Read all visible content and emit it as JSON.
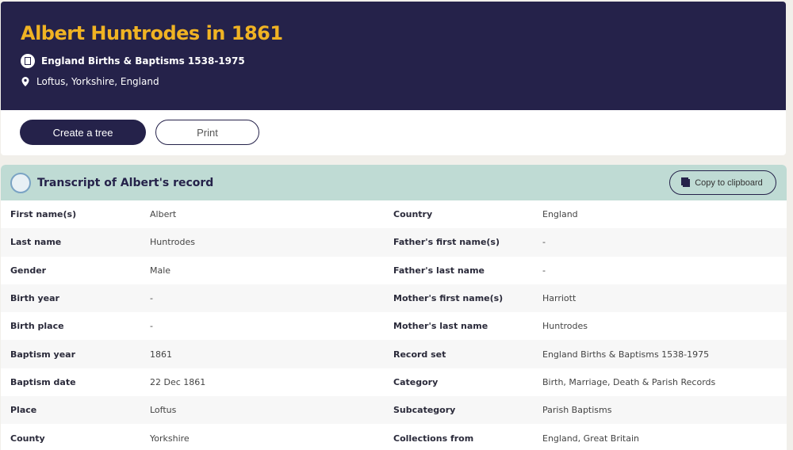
{
  "header": {
    "title": "Albert Huntrodes in 1861",
    "record_set": "England Births & Baptisms 1538-1975",
    "location": "Loftus, Yorkshire, England"
  },
  "actions": {
    "create_tree": "Create a tree",
    "print": "Print"
  },
  "transcript": {
    "title": "Transcript of Albert's record",
    "copy": "Copy to clipboard",
    "rows": [
      {
        "l1": "First name(s)",
        "v1": "Albert",
        "l2": "Country",
        "v2": "England"
      },
      {
        "l1": "Last name",
        "v1": "Huntrodes",
        "l2": "Father's first name(s)",
        "v2": "-"
      },
      {
        "l1": "Gender",
        "v1": "Male",
        "l2": "Father's last name",
        "v2": "-"
      },
      {
        "l1": "Birth year",
        "v1": "-",
        "l2": "Mother's first name(s)",
        "v2": "Harriott"
      },
      {
        "l1": "Birth place",
        "v1": "-",
        "l2": "Mother's last name",
        "v2": "Huntrodes"
      },
      {
        "l1": "Baptism year",
        "v1": "1861",
        "l2": "Record set",
        "v2": "England Births & Baptisms 1538-1975"
      },
      {
        "l1": "Baptism date",
        "v1": "22 Dec 1861",
        "l2": "Category",
        "v2": "Birth, Marriage, Death & Parish Records"
      },
      {
        "l1": "Place",
        "v1": "Loftus",
        "l2": "Subcategory",
        "v2": "Parish Baptisms"
      },
      {
        "l1": "County",
        "v1": "Yorkshire",
        "l2": "Collections from",
        "v2": "England, Great Britain"
      }
    ]
  },
  "colors": {
    "navy": "#25224a",
    "gold": "#f0b323",
    "teal": "#bfdbd4"
  }
}
